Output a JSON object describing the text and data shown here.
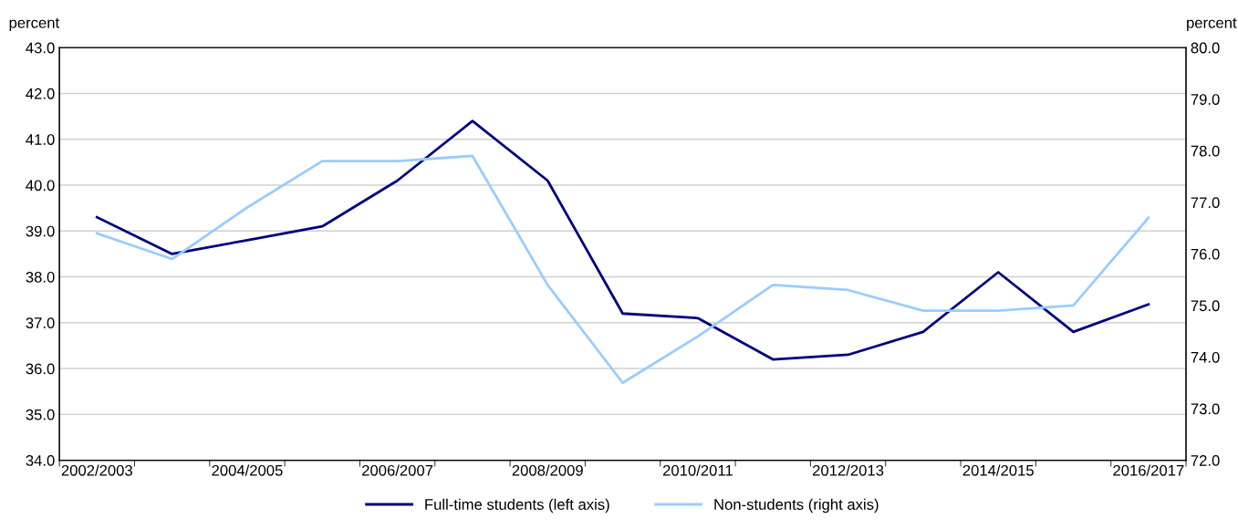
{
  "chart_data": {
    "type": "line",
    "categories": [
      "2002/2003",
      null,
      "2004/2005",
      null,
      "2006/2007",
      null,
      "2008/2009",
      null,
      "2010/2011",
      null,
      "2012/2013",
      null,
      "2014/2015",
      null,
      "2016/2017"
    ],
    "series": [
      {
        "name": "Full-time students (left axis)",
        "color": "#000080",
        "values": [
          39.3,
          38.5,
          38.8,
          39.1,
          40.1,
          41.4,
          40.1,
          37.2,
          37.1,
          36.2,
          36.3,
          36.8,
          38.1,
          36.8,
          37.4
        ]
      },
      {
        "name": "Non-students (right axis)",
        "color": "#99ccff",
        "axis": "y2",
        "values": [
          76.4,
          75.9,
          76.9,
          77.8,
          77.8,
          77.9,
          75.4,
          73.5,
          74.4,
          75.4,
          75.3,
          74.9,
          74.9,
          75.0,
          76.7
        ]
      }
    ],
    "ylabel": "percent",
    "y2label": "percent",
    "ylim": [
      34,
      43
    ],
    "yticks": [
      {
        "value": 34,
        "label": "34.0"
      },
      {
        "value": 35,
        "label": "35.0"
      },
      {
        "value": 36,
        "label": "36.0"
      },
      {
        "value": 37,
        "label": "37.0"
      },
      {
        "value": 38,
        "label": "38.0"
      },
      {
        "value": 39,
        "label": "39.0"
      },
      {
        "value": 40,
        "label": "40.0"
      },
      {
        "value": 41,
        "label": "41.0"
      },
      {
        "value": 42,
        "label": "42.0"
      },
      {
        "value": 43,
        "label": "43.0"
      }
    ],
    "y2lim": [
      72,
      80
    ],
    "y2ticks": [
      {
        "value": 72,
        "label": "72.0"
      },
      {
        "value": 73,
        "label": "73.0"
      },
      {
        "value": 74,
        "label": "74.0"
      },
      {
        "value": 75,
        "label": "75.0"
      },
      {
        "value": 76,
        "label": "76.0"
      },
      {
        "value": 77,
        "label": "77.0"
      },
      {
        "value": 78,
        "label": "78.0"
      },
      {
        "value": 79,
        "label": "79.0"
      },
      {
        "value": 80,
        "label": "80.0"
      }
    ],
    "grid": "y",
    "legend": "bottom",
    "marker": "none",
    "line_style": "solid"
  }
}
